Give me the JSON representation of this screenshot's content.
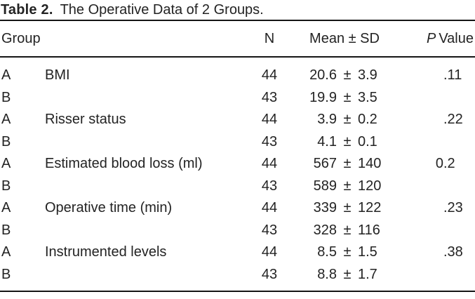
{
  "title": {
    "label": "Table 2.",
    "text": "The Operative Data of 2 Groups."
  },
  "table": {
    "headers": {
      "group": "Group",
      "n": "N",
      "mean_sd": "Mean ± SD",
      "p_italic": "P",
      "p_word": "Value"
    },
    "pm_symbol": "±",
    "rows": [
      {
        "group": "A",
        "measure": "BMI",
        "n": "44",
        "mean": "20.6",
        "sd": "3.9",
        "p": ".11"
      },
      {
        "group": "B",
        "measure": "",
        "n": "43",
        "mean": "19.9",
        "sd": "3.5",
        "p": ""
      },
      {
        "group": "A",
        "measure": "Risser status",
        "n": "44",
        "mean": "3.9",
        "sd": "0.2",
        "p": ".22"
      },
      {
        "group": "B",
        "measure": "",
        "n": "43",
        "mean": "4.1",
        "sd": "0.1",
        "p": ""
      },
      {
        "group": "A",
        "measure": "Estimated blood loss (ml)",
        "n": "44",
        "mean": "567",
        "sd": "140",
        "p": "0.2"
      },
      {
        "group": "B",
        "measure": "",
        "n": "43",
        "mean": "589",
        "sd": "120",
        "p": ""
      },
      {
        "group": "A",
        "measure": "Operative time (min)",
        "n": "44",
        "mean": "339",
        "sd": "122",
        "p": ".23"
      },
      {
        "group": "B",
        "measure": "",
        "n": "43",
        "mean": "328",
        "sd": "116",
        "p": ""
      },
      {
        "group": "A",
        "measure": "Instrumented levels",
        "n": "44",
        "mean": "8.5",
        "sd": "1.5",
        "p": ".38"
      },
      {
        "group": "B",
        "measure": "",
        "n": "43",
        "mean": "8.8",
        "sd": "1.7",
        "p": ""
      }
    ]
  },
  "colors": {
    "text": "#232323",
    "rule": "#151515",
    "background": "#ffffff"
  }
}
